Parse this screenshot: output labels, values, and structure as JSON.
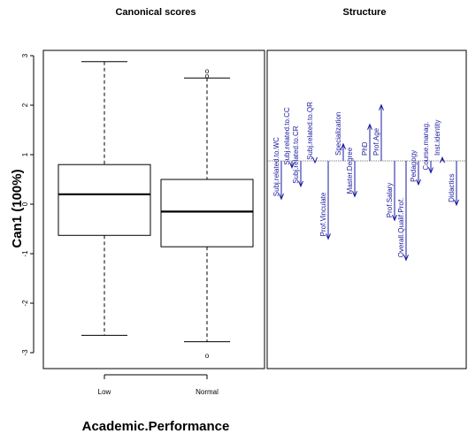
{
  "chart_data": [
    {
      "type": "box",
      "title": "Canonical scores",
      "xlabel": "Academic.Performance",
      "ylabel": "Can1 (100%)",
      "ylim": [
        -3.2,
        3.1
      ],
      "yticks": [
        -3,
        -2,
        -1,
        0,
        1,
        2,
        3
      ],
      "categories": [
        "Low",
        "Normal"
      ],
      "boxes": [
        {
          "category": "Low",
          "min": -2.65,
          "q1": -0.63,
          "median": 0.2,
          "q3": 0.8,
          "max": 2.88,
          "outliers": []
        },
        {
          "category": "Normal",
          "min": -2.78,
          "q1": -0.86,
          "median": -0.15,
          "q3": 0.5,
          "max": 2.55,
          "outliers": [
            2.7,
            2.6,
            -3.05
          ]
        }
      ],
      "outlier_marker": "o"
    },
    {
      "type": "bar",
      "title": "Structure",
      "arrow_color": "#1a1aa0",
      "categories": [
        "Subj.related.to.WC",
        "Subj.related.to.CC",
        "Subj.related.to.CR",
        "Subj.related.to.QR",
        "Prof.Vinculate",
        "Specialization",
        "Master.Degree",
        "PhD",
        "Prof.Age",
        "Prof.Salary",
        "Overall.Qualif.Prof.",
        "Pedagogy",
        "Course.manag.",
        "Inst.identity",
        "Didactics"
      ],
      "values": [
        -0.45,
        -0.08,
        -0.3,
        -0.02,
        -0.92,
        0.2,
        -0.42,
        0.43,
        0.66,
        -0.7,
        -1.17,
        -0.28,
        -0.14,
        0.04,
        -0.52
      ]
    }
  ]
}
